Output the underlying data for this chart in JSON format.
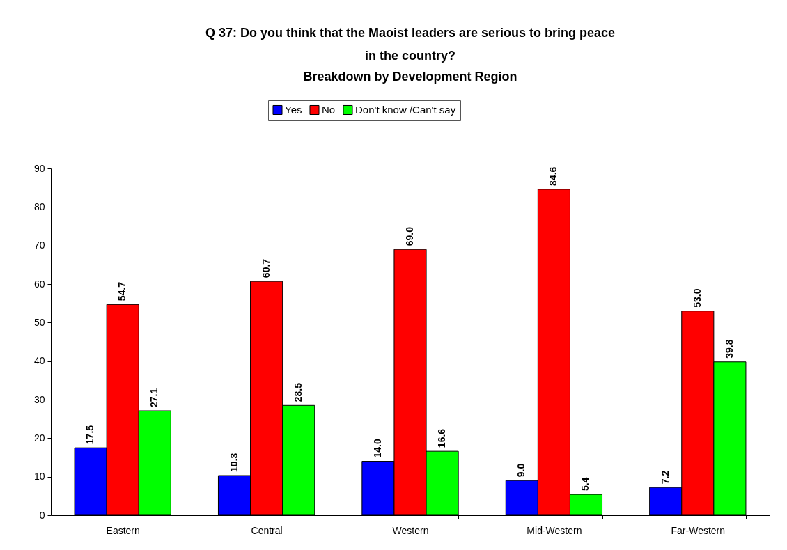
{
  "chart_data": {
    "type": "bar",
    "title": "Q 37: Do you think that the Maoist leaders are serious to bring peace in the country?",
    "subtitle": "Breakdown by Development Region",
    "categories": [
      "Eastern",
      "Central",
      "Western",
      "Mid-Western",
      "Far-Western"
    ],
    "series": [
      {
        "name": "Yes",
        "color": "#0000ff",
        "values": [
          17.5,
          10.3,
          14.0,
          9.0,
          7.2
        ],
        "value_labels": [
          "17.5",
          "10.3",
          "14.0",
          "9.0",
          "7.2"
        ]
      },
      {
        "name": "No",
        "color": "#ff0000",
        "values": [
          54.7,
          60.7,
          69.0,
          84.6,
          53.0
        ],
        "value_labels": [
          "54.7",
          "60.7",
          "69.0",
          "84.6",
          "53.0"
        ]
      },
      {
        "name": "Don't know /Can't say",
        "color": "#00ff00",
        "values": [
          27.1,
          28.5,
          16.6,
          5.4,
          39.8
        ],
        "value_labels": [
          "27.1",
          "28.5",
          "16.6",
          "5.4",
          "39.8"
        ]
      }
    ],
    "ylim": [
      0,
      90
    ],
    "yticks": [
      0,
      10,
      20,
      30,
      40,
      50,
      60,
      70,
      80,
      90
    ],
    "grid": false,
    "legend": "top"
  }
}
